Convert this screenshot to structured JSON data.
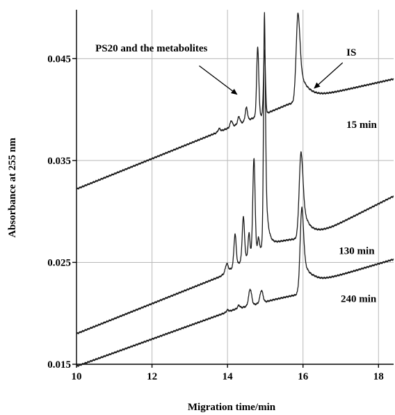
{
  "chart_data": {
    "type": "line",
    "xlabel": "Migration time/min",
    "ylabel": "Absorbance at 255 nm",
    "xlim": [
      10,
      18.4
    ],
    "ylim": [
      0.015,
      0.0498
    ],
    "xticks": [
      10,
      12,
      14,
      16,
      18
    ],
    "yticks": [
      0.015,
      0.025,
      0.035,
      0.045
    ],
    "ytick_labels": [
      "0.015",
      "0.025",
      "0.035",
      "0.045"
    ],
    "grid": true,
    "series": [
      {
        "name": "15 min",
        "baseline": [
          [
            10,
            0.0322
          ],
          [
            14.7,
            0.0392
          ],
          [
            14.95,
            0.0395
          ],
          [
            15.6,
            0.0405
          ],
          [
            16.2,
            0.0412
          ],
          [
            16.6,
            0.0415
          ],
          [
            18.4,
            0.043
          ]
        ],
        "peaks": [
          {
            "x": 13.78,
            "h": 0.0003,
            "w": 0.03
          },
          {
            "x": 14.1,
            "h": 0.0006,
            "w": 0.03
          },
          {
            "x": 14.3,
            "h": 0.0007,
            "w": 0.03
          },
          {
            "x": 14.5,
            "h": 0.0013,
            "w": 0.03
          },
          {
            "x": 14.8,
            "h": 0.0068,
            "w": 0.028
          },
          {
            "x": 14.98,
            "h": 0.0063,
            "w": 0.025
          },
          {
            "x": 15.87,
            "h": 0.0087,
            "w": 0.05,
            "tail": 0.2
          }
        ]
      },
      {
        "name": "130 min",
        "baseline": [
          [
            10,
            0.018
          ],
          [
            13.8,
            0.0236
          ],
          [
            15,
            0.0268
          ],
          [
            15.6,
            0.0272
          ],
          [
            16.2,
            0.0275
          ],
          [
            16.8,
            0.0285
          ],
          [
            18.4,
            0.0315
          ]
        ],
        "peaks": [
          {
            "x": 13.98,
            "h": 0.0008,
            "w": 0.035
          },
          {
            "x": 14.2,
            "h": 0.0031,
            "w": 0.03
          },
          {
            "x": 14.42,
            "h": 0.0042,
            "w": 0.03
          },
          {
            "x": 14.57,
            "h": 0.0022,
            "w": 0.025
          },
          {
            "x": 14.7,
            "h": 0.0092,
            "w": 0.03
          },
          {
            "x": 14.82,
            "h": 0.0012,
            "w": 0.02
          },
          {
            "x": 14.98,
            "h": 0.0228,
            "w": 0.025,
            "tail": 0.06
          },
          {
            "x": 15.95,
            "h": 0.0085,
            "w": 0.05,
            "tail": 0.2
          }
        ]
      },
      {
        "name": "240 min",
        "baseline": [
          [
            10,
            0.0148
          ],
          [
            14.2,
            0.0204
          ],
          [
            15.3,
            0.0214
          ],
          [
            15.8,
            0.0218
          ],
          [
            16.3,
            0.023
          ],
          [
            18.4,
            0.0253
          ]
        ],
        "peaks": [
          {
            "x": 14.0,
            "h": 0.0002,
            "w": 0.03
          },
          {
            "x": 14.3,
            "h": 0.0003,
            "w": 0.03
          },
          {
            "x": 14.6,
            "h": 0.0016,
            "w": 0.04
          },
          {
            "x": 14.9,
            "h": 0.0012,
            "w": 0.04
          },
          {
            "x": 15.97,
            "h": 0.0082,
            "w": 0.045,
            "tail": 0.2
          }
        ]
      }
    ],
    "annotations": [
      {
        "id": "ps20",
        "text": "PS20 and the metabolites",
        "x": 10.5,
        "y": 0.0457,
        "arrow_from": [
          13.25,
          0.0443
        ],
        "arrow_to": [
          14.25,
          0.0415
        ]
      },
      {
        "id": "is",
        "text": "IS",
        "x": 17.15,
        "y": 0.0453,
        "arrow_from": [
          17.05,
          0.0446
        ],
        "arrow_to": [
          16.3,
          0.0421
        ]
      },
      {
        "id": "t15",
        "text": "15 min",
        "x": 17.15,
        "y": 0.0382
      },
      {
        "id": "t130",
        "text": "130 min",
        "x": 16.95,
        "y": 0.0258
      },
      {
        "id": "t240",
        "text": "240 min",
        "x": 17.0,
        "y": 0.0211
      }
    ]
  }
}
